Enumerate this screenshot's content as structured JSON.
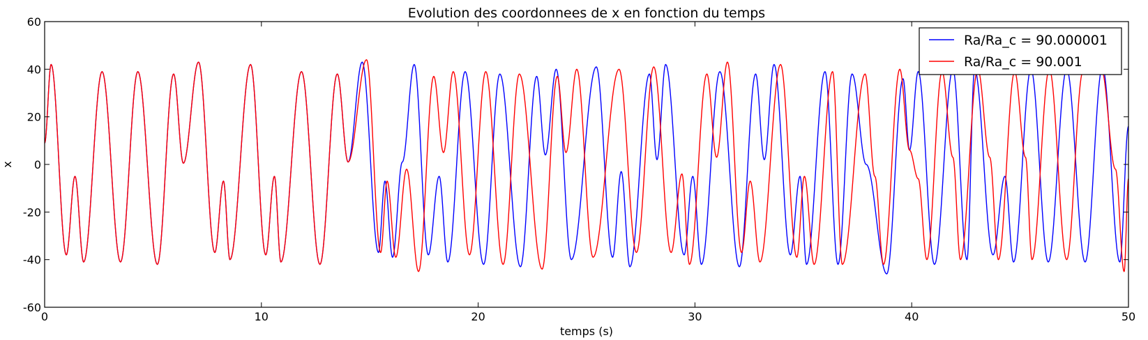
{
  "chart_data": {
    "type": "line",
    "title": "Evolution des coordonnees de x en fonction du temps",
    "xlabel": "temps (s)",
    "ylabel": "x",
    "xlim": [
      0,
      50
    ],
    "ylim": [
      -60,
      60
    ],
    "xticks": [
      0,
      10,
      20,
      30,
      40,
      50
    ],
    "yticks": [
      -60,
      -40,
      -20,
      0,
      20,
      40,
      60
    ],
    "grid": false,
    "legend_position": "top-right",
    "series": [
      {
        "name": "Ra/Ra_c = 90.000001",
        "color": "#0000ff",
        "extrema": [
          [
            0,
            9
          ],
          [
            0.3,
            42
          ],
          [
            1.0,
            -38
          ],
          [
            1.4,
            -5
          ],
          [
            1.8,
            -41
          ],
          [
            2.65,
            39
          ],
          [
            3.5,
            -41
          ],
          [
            4.3,
            39
          ],
          [
            5.2,
            -42
          ],
          [
            5.95,
            38
          ],
          [
            6.4,
            0.5
          ],
          [
            7.1,
            43
          ],
          [
            7.85,
            -37
          ],
          [
            8.25,
            -7
          ],
          [
            8.55,
            -40
          ],
          [
            9.5,
            42
          ],
          [
            10.2,
            -38
          ],
          [
            10.6,
            -5
          ],
          [
            10.9,
            -41
          ],
          [
            11.85,
            39
          ],
          [
            12.7,
            -42
          ],
          [
            13.5,
            38
          ],
          [
            14.0,
            1
          ],
          [
            14.65,
            43
          ],
          [
            15.4,
            -37
          ],
          [
            15.7,
            -7
          ],
          [
            16.05,
            -39
          ],
          [
            16.5,
            1
          ],
          [
            17.05,
            42
          ],
          [
            17.7,
            -38
          ],
          [
            18.2,
            -5
          ],
          [
            18.6,
            -41
          ],
          [
            19.4,
            39
          ],
          [
            20.25,
            -42
          ],
          [
            21.0,
            38
          ],
          [
            21.95,
            -43
          ],
          [
            22.7,
            37
          ],
          [
            23.1,
            4
          ],
          [
            23.6,
            40
          ],
          [
            24.3,
            -40
          ],
          [
            25.45,
            41
          ],
          [
            26.2,
            -39
          ],
          [
            26.6,
            -3
          ],
          [
            27.0,
            -43
          ],
          [
            27.9,
            38
          ],
          [
            28.25,
            2
          ],
          [
            28.65,
            42
          ],
          [
            29.5,
            -38
          ],
          [
            29.9,
            -5
          ],
          [
            30.3,
            -42
          ],
          [
            31.15,
            39
          ],
          [
            32.05,
            -43
          ],
          [
            32.8,
            38
          ],
          [
            33.2,
            2
          ],
          [
            33.65,
            42
          ],
          [
            34.4,
            -38
          ],
          [
            34.85,
            -5
          ],
          [
            35.15,
            -42
          ],
          [
            36.0,
            39
          ],
          [
            36.6,
            -42
          ],
          [
            37.25,
            38
          ],
          [
            37.9,
            0
          ],
          [
            38.85,
            -46
          ],
          [
            39.6,
            36
          ],
          [
            39.9,
            6
          ],
          [
            40.3,
            39
          ],
          [
            41.05,
            -42
          ],
          [
            41.9,
            40
          ],
          [
            42.55,
            -40
          ],
          [
            42.9,
            40
          ],
          [
            43.75,
            -38
          ],
          [
            44.3,
            -5
          ],
          [
            44.7,
            -41
          ],
          [
            45.5,
            40
          ],
          [
            46.3,
            -41
          ],
          [
            47.15,
            40
          ],
          [
            48.0,
            -41
          ],
          [
            48.8,
            41
          ],
          [
            49.6,
            -41
          ],
          [
            50,
            16
          ]
        ]
      },
      {
        "name": "Ra/Ra_c = 90.001",
        "color": "#ff0000",
        "extrema": [
          [
            0,
            9
          ],
          [
            0.3,
            42
          ],
          [
            1.0,
            -38
          ],
          [
            1.4,
            -5
          ],
          [
            1.8,
            -41
          ],
          [
            2.65,
            39
          ],
          [
            3.5,
            -41
          ],
          [
            4.3,
            39
          ],
          [
            5.2,
            -42
          ],
          [
            5.95,
            38
          ],
          [
            6.4,
            0.5
          ],
          [
            7.1,
            43
          ],
          [
            7.85,
            -37
          ],
          [
            8.25,
            -7
          ],
          [
            8.55,
            -40
          ],
          [
            9.5,
            42
          ],
          [
            10.2,
            -38
          ],
          [
            10.6,
            -5
          ],
          [
            10.9,
            -41
          ],
          [
            11.85,
            39
          ],
          [
            12.7,
            -42
          ],
          [
            13.5,
            38
          ],
          [
            14.0,
            1
          ],
          [
            14.85,
            44
          ],
          [
            15.5,
            -37
          ],
          [
            15.8,
            -7
          ],
          [
            16.2,
            -39
          ],
          [
            16.7,
            -2
          ],
          [
            17.25,
            -45
          ],
          [
            17.95,
            37
          ],
          [
            18.4,
            5
          ],
          [
            18.85,
            39
          ],
          [
            19.6,
            -38
          ],
          [
            20.35,
            39
          ],
          [
            21.15,
            -42
          ],
          [
            21.9,
            38
          ],
          [
            22.95,
            -44
          ],
          [
            23.65,
            37
          ],
          [
            24.05,
            5
          ],
          [
            24.55,
            40
          ],
          [
            25.3,
            -39
          ],
          [
            26.5,
            40
          ],
          [
            27.3,
            -37
          ],
          [
            28.1,
            41
          ],
          [
            28.9,
            -37
          ],
          [
            29.4,
            -4
          ],
          [
            29.75,
            -42
          ],
          [
            30.55,
            38
          ],
          [
            31.0,
            3
          ],
          [
            31.5,
            43
          ],
          [
            32.15,
            -37
          ],
          [
            32.55,
            -7
          ],
          [
            33.0,
            -41
          ],
          [
            33.95,
            42
          ],
          [
            34.7,
            -39
          ],
          [
            35.05,
            -5
          ],
          [
            35.5,
            -42
          ],
          [
            36.35,
            39
          ],
          [
            36.8,
            -42
          ],
          [
            37.85,
            38
          ],
          [
            38.3,
            -5
          ],
          [
            38.7,
            -42
          ],
          [
            39.45,
            40
          ],
          [
            39.9,
            6
          ],
          [
            40.3,
            -6
          ],
          [
            40.7,
            -40
          ],
          [
            41.4,
            39
          ],
          [
            41.9,
            3
          ],
          [
            42.25,
            -40
          ],
          [
            43.05,
            40
          ],
          [
            43.6,
            3
          ],
          [
            44.0,
            -40
          ],
          [
            44.75,
            39
          ],
          [
            45.25,
            3
          ],
          [
            45.55,
            -40
          ],
          [
            46.35,
            40
          ],
          [
            47.15,
            -40
          ],
          [
            47.9,
            39
          ],
          [
            48.75,
            40
          ],
          [
            49.4,
            -2
          ],
          [
            49.8,
            -45
          ],
          [
            50,
            -6
          ]
        ]
      }
    ]
  }
}
